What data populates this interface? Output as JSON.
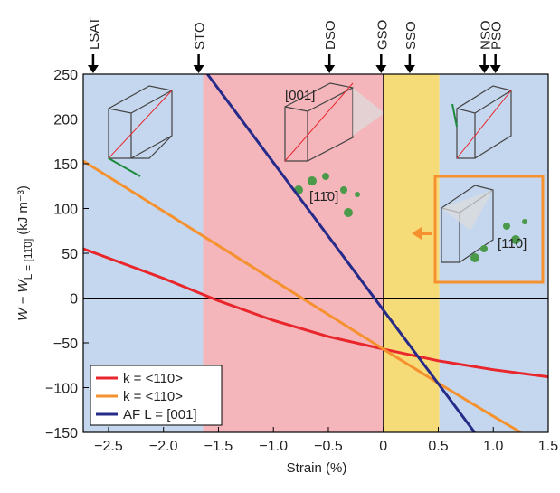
{
  "chart_data": {
    "type": "line",
    "xlabel": "Strain (%)",
    "ylabel": "W − W",
    "ylabel_sub": "L = [11̄0]",
    "ylabel_unit": "(kJ m⁻³)",
    "xlim": [
      -2.73,
      1.5
    ],
    "ylim": [
      -150,
      250
    ],
    "xticks": [
      {
        "value": -2.5,
        "label": "−2.5"
      },
      {
        "value": -2,
        "label": "−2.0"
      },
      {
        "value": -1.5,
        "label": "−1.5"
      },
      {
        "value": -1,
        "label": "−1.0"
      },
      {
        "value": -0.5,
        "label": "−0.5"
      },
      {
        "value": 0,
        "label": "0"
      },
      {
        "value": 0.5,
        "label": "0.5"
      },
      {
        "value": 1,
        "label": "1.0"
      },
      {
        "value": 1.5,
        "label": "1.5"
      }
    ],
    "yticks": [
      {
        "value": -150,
        "label": "−150"
      },
      {
        "value": -100,
        "label": "−100"
      },
      {
        "value": -50,
        "label": "−50"
      },
      0,
      50,
      100,
      150,
      200,
      250
    ],
    "regions": [
      {
        "start": -2.73,
        "end": -1.64,
        "color": "#c5d7ee"
      },
      {
        "start": -1.64,
        "end": 0,
        "color": "#f4b5bb"
      },
      {
        "start": 0,
        "end": 0.51,
        "color": "#f6dc78"
      },
      {
        "start": 0.51,
        "end": 1.5,
        "color": "#c5d7ee"
      }
    ],
    "substrates": [
      {
        "name": "LSAT",
        "x": -2.64,
        "color": "#3a5fb0"
      },
      {
        "name": "STO",
        "x": -1.68,
        "color": "#3a5fb0"
      },
      {
        "name": "DSO",
        "x": -0.49,
        "color": "#e8262b"
      },
      {
        "name": "GSO",
        "x": -0.02,
        "color": "#e8262b"
      },
      {
        "name": "SSO",
        "x": 0.24,
        "color": "#f5922f"
      },
      {
        "name": "NSO",
        "x": 0.92,
        "color": "#3a5fb0"
      },
      {
        "name": "PSO",
        "x": 1.02,
        "color": "#3a5fb0"
      }
    ],
    "series": [
      {
        "name": "k = <11̄0>",
        "color": "#e8262b",
        "x": [
          -2.73,
          -2,
          -1.5,
          -1,
          -0.5,
          0,
          0.5,
          1,
          1.5
        ],
        "values": [
          55,
          22,
          -3,
          -25,
          -43,
          -57,
          -70,
          -80,
          -88
        ]
      },
      {
        "name": "k = <110>",
        "color": "#f5922f",
        "x": [
          -2.73,
          -2,
          -1,
          0,
          0.5,
          1,
          1.25
        ],
        "values": [
          153,
          97,
          20,
          -57,
          -95,
          -132,
          -150
        ]
      },
      {
        "name": "AF L = [001]",
        "color": "#262b8a",
        "x": [
          -1.6,
          0.83
        ],
        "values": [
          250,
          -150
        ]
      }
    ],
    "annotations": [
      "[001]",
      "[11̄0]",
      "[110]"
    ]
  }
}
